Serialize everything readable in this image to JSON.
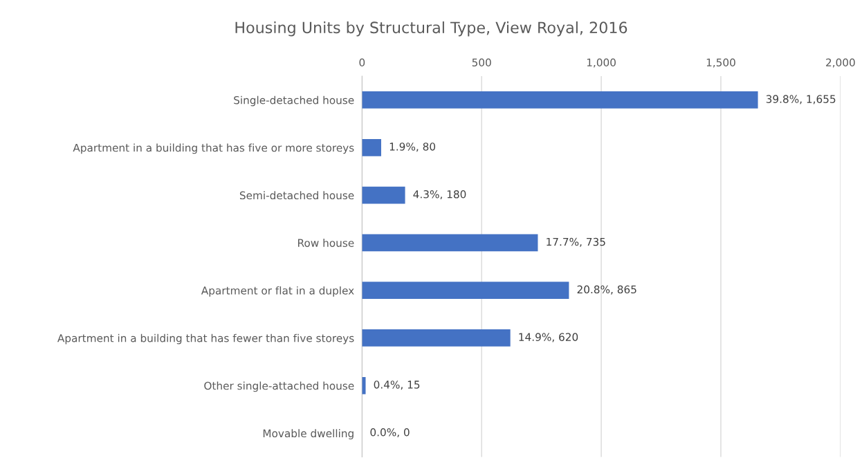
{
  "chart_data": {
    "type": "bar",
    "orientation": "horizontal",
    "title": "Housing Units by Structural Type, View Royal, 2016",
    "categories": [
      "Single-detached house",
      "Apartment in a building that has five or more storeys",
      "Semi-detached house",
      "Row house",
      "Apartment or flat in a duplex",
      "Apartment in a building that has fewer than five storeys",
      "Other single-attached house",
      "Movable dwelling"
    ],
    "values": [
      1655,
      80,
      180,
      735,
      865,
      620,
      15,
      0
    ],
    "value_labels": [
      "39.8%, 1,655",
      "1.9%, 80",
      "4.3%, 180",
      "17.7%, 735",
      "20.8%, 865",
      "14.9%, 620",
      "0.4%, 15",
      "0.0%, 0"
    ],
    "color": "#4472c4",
    "xlim": [
      0,
      2000
    ],
    "xticks": [
      0,
      500,
      {
        "value": 1000,
        "label": "1,000"
      },
      {
        "value": 1500,
        "label": "1,500"
      },
      {
        "value": 2000,
        "label": "2,000"
      }
    ],
    "grid": "x"
  }
}
